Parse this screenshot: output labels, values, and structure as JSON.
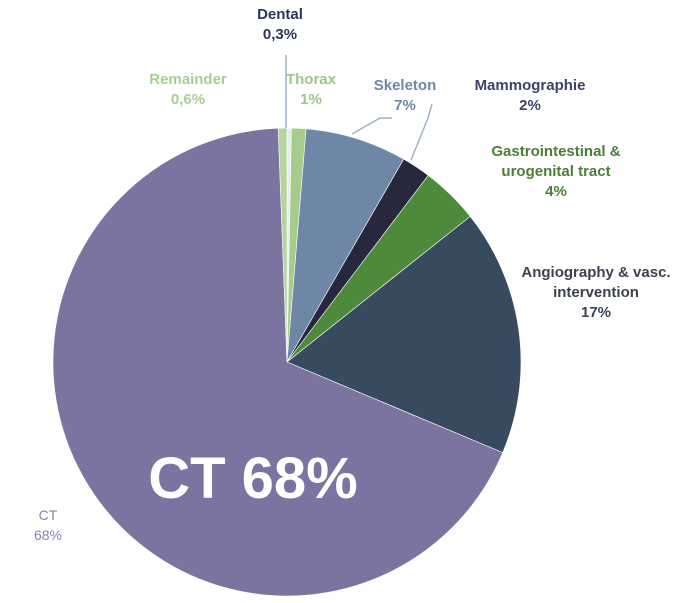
{
  "chart_data": {
    "type": "pie",
    "categories": [
      "Dental",
      "Thorax",
      "Skeleton",
      "Mammographie",
      "Gastrointestinal & urogenital tract",
      "Angiography & vasc. intervention",
      "CT",
      "Remainder"
    ],
    "values": [
      0.3,
      1,
      7,
      2,
      4,
      17,
      68,
      0.6
    ],
    "value_labels": [
      "0,3%",
      "1%",
      "7%",
      "2%",
      "4%",
      "17%",
      "68%",
      "0,6%"
    ],
    "colors": [
      "#e8ecf2",
      "#a6cc8c",
      "#6e87a6",
      "#27283d",
      "#4e8a3b",
      "#384a5e",
      "#7b73a0",
      "#b3d59e"
    ],
    "label_colors": [
      "#2b3557",
      "#9cc784",
      "#6e87a6",
      "#3b4468",
      "#4a7f36",
      "#3c4250",
      "#8a83ad",
      "#a8cf90"
    ],
    "annotation": "CT 68%"
  }
}
